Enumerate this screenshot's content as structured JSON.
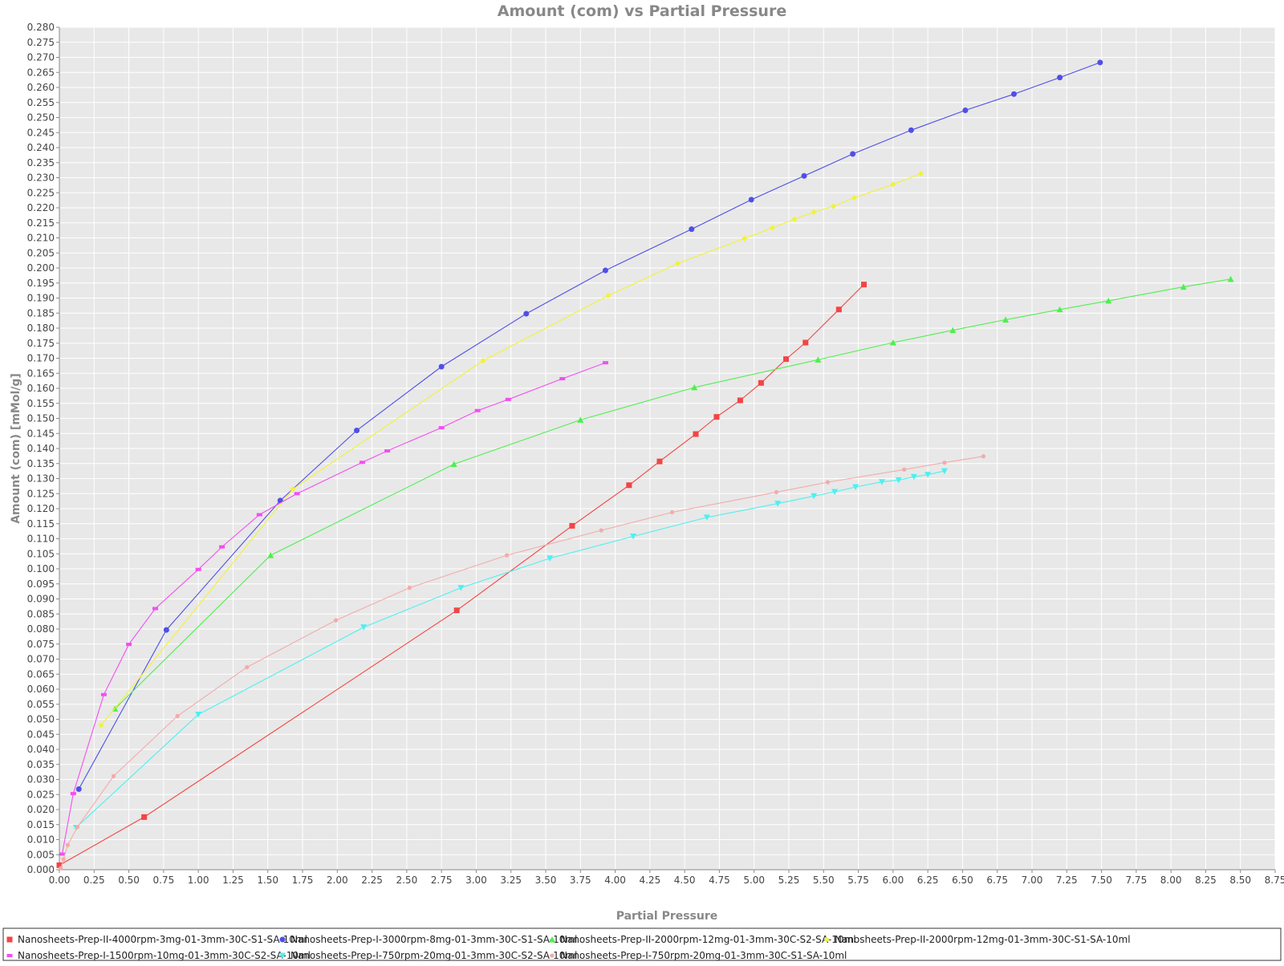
{
  "chart_data": {
    "type": "line",
    "title": "Amount (com) vs Partial Pressure",
    "xlabel": "Partial Pressure",
    "ylabel": "Amount (com) [mMol/g]",
    "xlim": [
      0,
      8.75
    ],
    "ylim": [
      0,
      0.28
    ],
    "x_tick_step": 0.25,
    "y_tick_step": 0.005,
    "grid": true,
    "legend_position": "bottom",
    "background_color": "#e8e8e8",
    "series": [
      {
        "name": "Nanosheets-Prep-II-4000rpm-3mg-01-3mm-30C-S1-SA-10ml",
        "color": "#f44444",
        "marker": "square",
        "x": [
          0.0,
          0.61,
          2.86,
          3.69,
          4.1,
          4.32,
          4.58,
          4.73,
          4.9,
          5.05,
          5.23,
          5.37,
          5.61,
          5.79
        ],
        "y": [
          0.0015,
          0.0175,
          0.0862,
          0.1143,
          0.1278,
          0.1357,
          0.1448,
          0.1505,
          0.156,
          0.1618,
          0.1697,
          0.1752,
          0.1862,
          0.1945
        ]
      },
      {
        "name": "Nanosheets-Prep-I-3000rpm-8mg-01-3mm-30C-S1-SA-10ml",
        "color": "#4f4fe8",
        "marker": "circle",
        "x": [
          0.14,
          0.77,
          1.59,
          2.14,
          2.75,
          3.36,
          3.93,
          4.55,
          4.98,
          5.36,
          5.71,
          6.13,
          6.52,
          6.87,
          7.2,
          7.49
        ],
        "y": [
          0.0268,
          0.0797,
          0.1227,
          0.146,
          0.1672,
          0.1848,
          0.1992,
          0.2129,
          0.2227,
          0.2306,
          0.2379,
          0.2458,
          0.2524,
          0.2578,
          0.2633,
          0.2683
        ]
      },
      {
        "name": "Nanosheets-Prep-II-2000rpm-12mg-01-3mm-30C-S2-SA-10ml",
        "color": "#4cf04c",
        "marker": "triangle-up",
        "x": [
          0.4,
          1.52,
          2.84,
          3.75,
          4.57,
          5.46,
          6.0,
          6.43,
          6.81,
          7.2,
          7.55,
          8.09,
          8.43
        ],
        "y": [
          0.0535,
          0.1045,
          0.1348,
          0.1495,
          0.1603,
          0.1695,
          0.1752,
          0.1793,
          0.1828,
          0.1862,
          0.1891,
          0.1937,
          0.1963
        ]
      },
      {
        "name": "Nanosheets-Prep-II-2000rpm-12mg-01-3mm-30C-S1-SA-10ml",
        "color": "#f2f236",
        "marker": "diamond",
        "x": [
          0.3,
          1.68,
          3.05,
          3.95,
          4.45,
          4.93,
          5.13,
          5.29,
          5.43,
          5.57,
          5.72,
          6.0,
          6.2
        ],
        "y": [
          0.048,
          0.1265,
          0.1692,
          0.1908,
          0.2015,
          0.2098,
          0.2133,
          0.2162,
          0.2186,
          0.2205,
          0.2233,
          0.2278,
          0.2313
        ]
      },
      {
        "name": "Nanosheets-Prep-I-1500rpm-10mg-01-3mm-30C-S2-SA-10ml",
        "color": "#f44ef2",
        "marker": "rect",
        "x": [
          0.02,
          0.1,
          0.32,
          0.5,
          0.69,
          1.0,
          1.17,
          1.44,
          1.71,
          2.18,
          2.36,
          2.75,
          3.01,
          3.23,
          3.62,
          3.93
        ],
        "y": [
          0.0052,
          0.0253,
          0.0582,
          0.0749,
          0.0868,
          0.0998,
          0.1073,
          0.118,
          0.125,
          0.1354,
          0.1392,
          0.1469,
          0.1526,
          0.1563,
          0.1632,
          0.1685
        ]
      },
      {
        "name": "Nanosheets-Prep-I-750rpm-20mg-01-3mm-30C-S2-SA-10ml",
        "color": "#4cf0f0",
        "marker": "triangle-down",
        "x": [
          0.12,
          1.0,
          2.19,
          2.89,
          3.53,
          4.13,
          4.66,
          5.17,
          5.43,
          5.58,
          5.73,
          5.92,
          6.04,
          6.15,
          6.25,
          6.37
        ],
        "y": [
          0.014,
          0.0516,
          0.0806,
          0.0937,
          0.1035,
          0.1108,
          0.1171,
          0.1217,
          0.1242,
          0.1256,
          0.1272,
          0.1289,
          0.1295,
          0.1306,
          0.1313,
          0.1325
        ]
      },
      {
        "name": "Nanosheets-Prep-I-750rpm-20mg-01-3mm-30C-S1-SA-10ml",
        "color": "#f4aaaa",
        "marker": "small-circle",
        "x": [
          0.01,
          0.03,
          0.06,
          0.13,
          0.39,
          0.85,
          1.35,
          1.99,
          2.52,
          3.22,
          3.9,
          4.41,
          5.16,
          5.53,
          6.08,
          6.37,
          6.65
        ],
        "y": [
          0.0005,
          0.0035,
          0.0082,
          0.0142,
          0.0311,
          0.0511,
          0.0673,
          0.0829,
          0.0937,
          0.1045,
          0.1128,
          0.1188,
          0.1255,
          0.1288,
          0.133,
          0.1353,
          0.1374
        ]
      }
    ]
  }
}
